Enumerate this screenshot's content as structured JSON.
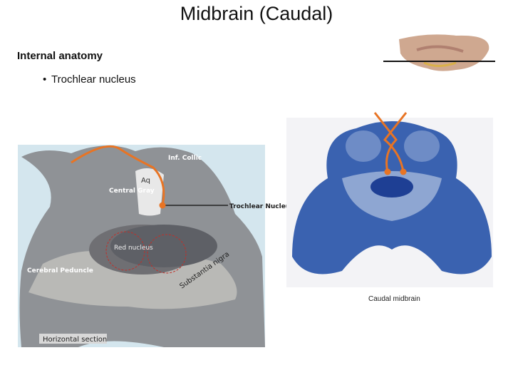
{
  "slide": {
    "title": "Midbrain (Caudal)",
    "heading": "Internal anatomy",
    "bullet": "Trochlear nucleus",
    "left_figure": {
      "labels": [
        "Inf. Collic",
        "Aq",
        "Central Gray",
        "Trochlear Nucleus",
        "Red nucleus",
        "Cerebral Peduncle",
        "Substantia nigra"
      ],
      "caption": "Horizontal section"
    },
    "right_figure": {
      "caption": "Caudal midbrain"
    }
  }
}
